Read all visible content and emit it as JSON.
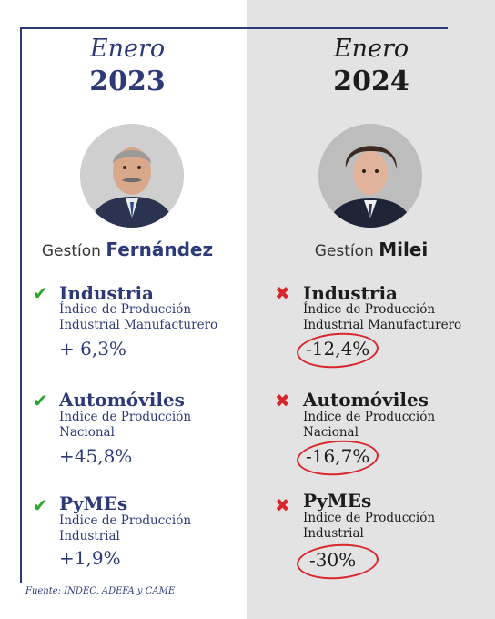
{
  "left": {
    "month": "Enero",
    "year": "2023",
    "gestion_prefix": "Gestíon",
    "gestion_name": "Fernández",
    "items": [
      {
        "title": "Industria",
        "desc": "Índice de Producción Industrial Manufacturero",
        "value": "+ 6,3%",
        "status": "check"
      },
      {
        "title": "Automóviles",
        "desc": "Indice de Producción Nacional",
        "value": "+45,8%",
        "status": "check"
      },
      {
        "title": "PyMEs",
        "desc": "Indice de Producción Industrial",
        "value": "+1,9%",
        "status": "check"
      }
    ]
  },
  "right": {
    "month": "Enero",
    "year": "2024",
    "gestion_prefix": "Gestíon",
    "gestion_name": "Milei",
    "items": [
      {
        "title": "Industria",
        "desc": "Índice de Producción Industrial Manufacturero",
        "value": "-12,4%",
        "status": "cross"
      },
      {
        "title": "Automóviles",
        "desc": "Indice de Producción Nacional",
        "value": "-16,7%",
        "status": "cross"
      },
      {
        "title": "PyMEs",
        "desc": "Indice de Producción Industrial",
        "value": "-30%",
        "status": "cross"
      }
    ]
  },
  "source": "Fuente: INDEC, ADEFA y CAME",
  "colors": {
    "navy": "#2c3a78",
    "check": "#2aa72a",
    "cross": "#d9262c",
    "right_bg": "#e3e3e3"
  },
  "icons": {
    "check": "check-icon",
    "cross": "cross-icon"
  }
}
